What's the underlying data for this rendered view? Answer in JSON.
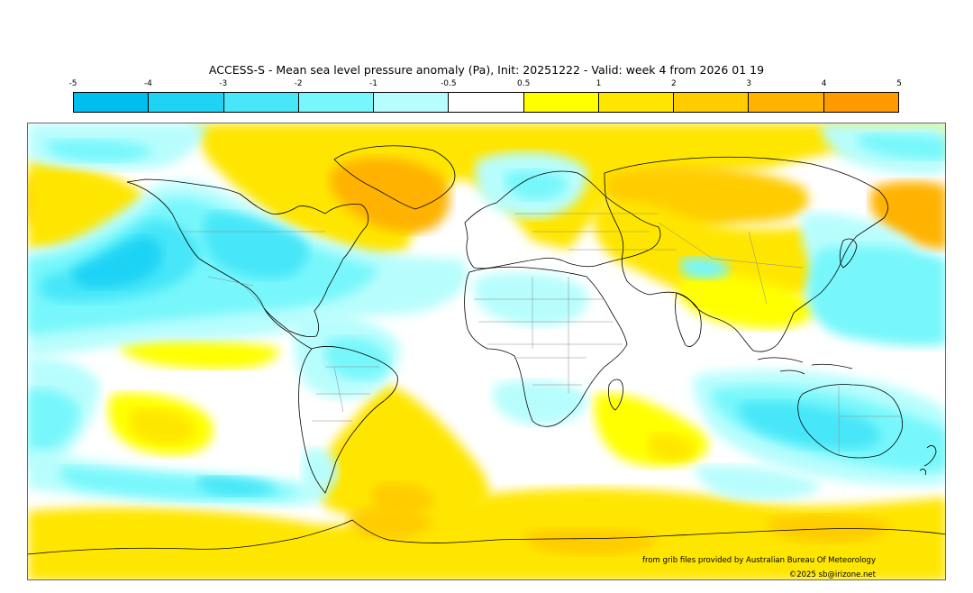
{
  "title": "ACCESS-S - Mean sea level pressure anomaly (Pa), Init: 20251222 - Valid: week 4 from 2026 01 19",
  "colorbar": {
    "ticks": [
      "-5",
      "-4",
      "-3",
      "-2",
      "-1",
      "-0.5",
      "0.5",
      "1",
      "2",
      "3",
      "4",
      "5"
    ],
    "colors": [
      "#00bfef",
      "#1fd3f5",
      "#47e6f8",
      "#77f7fb",
      "#b8fdfd",
      "#ffffff",
      "#ffff00",
      "#ffe600",
      "#ffcc00",
      "#ffb200",
      "#ff9900"
    ]
  },
  "credits": {
    "source": "from grib files provided by Australian Bureau Of Meteorology",
    "copyright": "©2025 sb@irizone.net"
  }
}
